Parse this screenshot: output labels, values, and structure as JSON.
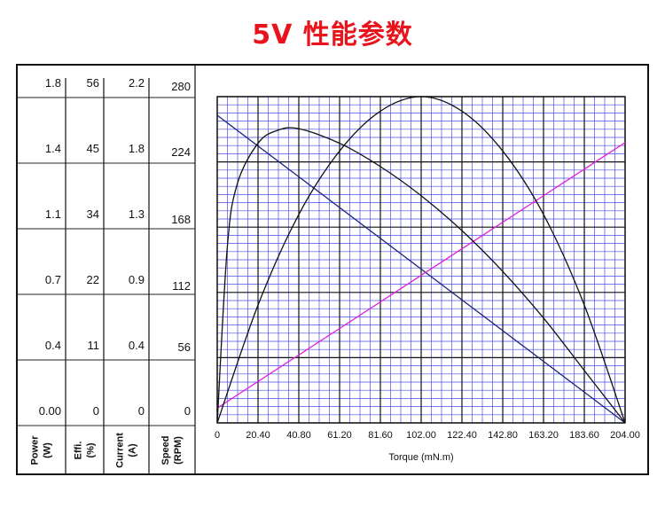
{
  "title": "5V 性能参数",
  "chart_data": {
    "type": "line",
    "xlabel": "Torque (mN.m)",
    "x_ticks": [
      "0",
      "20.40",
      "40.80",
      "61.20",
      "81.60",
      "102.00",
      "122.40",
      "142.80",
      "163.20",
      "183.60",
      "204.00"
    ],
    "xlim": [
      0,
      204
    ],
    "y_axes": [
      {
        "name": "Power",
        "unit": "(W)",
        "ticks": [
          "0.00",
          "0.4",
          "0.7",
          "1.1",
          "1.4",
          "1.8"
        ]
      },
      {
        "name": "Effi.",
        "unit": "(%)",
        "ticks": [
          "0",
          "11",
          "22",
          "34",
          "45",
          "56"
        ]
      },
      {
        "name": "Current",
        "unit": "(A)",
        "ticks": [
          "0",
          "0.4",
          "0.9",
          "1.3",
          "1.8",
          "2.2"
        ]
      },
      {
        "name": "Speed",
        "unit": "(RPM)",
        "ticks": [
          "0",
          "56",
          "112",
          "168",
          "224",
          "280"
        ]
      }
    ],
    "ylim_fraction": [
      0,
      1
    ],
    "grid": true,
    "series": [
      {
        "color": "#1a237e",
        "x": [
          0,
          204
        ],
        "y": [
          264,
          0
        ]
      },
      {
        "color": "#e020e0",
        "x": [
          0,
          204
        ],
        "y": [
          0.1,
          1.89
        ]
      },
      {
        "color": "#111111",
        "x": [
          0,
          20.4,
          40.8,
          61.2,
          81.6,
          102,
          122.4,
          142.8,
          163.2,
          183.6,
          204
        ],
        "y": [
          0,
          0.65,
          1.15,
          1.5,
          1.72,
          1.8,
          1.72,
          1.5,
          1.15,
          0.65,
          0
        ]
      },
      {
        "color": "#111111",
        "x": [
          0,
          5,
          10,
          20.4,
          30,
          40.8,
          61.2,
          81.6,
          102,
          122.4,
          142.8,
          163.2,
          183.6,
          204
        ],
        "y": [
          0,
          30,
          41,
          48,
          50.2,
          50.5,
          48,
          44,
          39,
          33,
          26,
          18,
          9,
          0
        ]
      }
    ]
  }
}
